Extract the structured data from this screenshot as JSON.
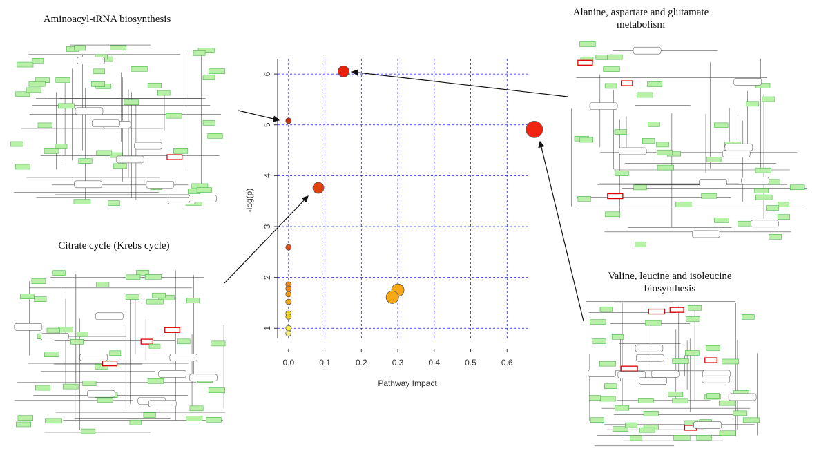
{
  "chart_data": {
    "type": "scatter",
    "x_label": "Pathway Impact",
    "y_label": "-log(p)",
    "x": [
      0.151,
      0.0,
      0.675,
      0.082,
      0.0,
      0.0,
      0.0,
      0.0,
      0.0,
      0.0,
      0.0,
      0.0,
      0.0,
      0.3,
      0.285
    ],
    "values": [
      6.05,
      5.08,
      4.91,
      3.76,
      2.59,
      1.86,
      1.78,
      1.67,
      1.52,
      1.29,
      1.23,
      1.0,
      0.9,
      1.75,
      1.61
    ],
    "sizes": [
      8,
      4,
      12,
      8,
      4,
      4,
      4,
      4,
      4,
      4,
      4,
      4,
      4,
      9,
      9
    ],
    "colors": [
      "#e8220c",
      "#c8300e",
      "#f02410",
      "#e0420e",
      "#e0501a",
      "#f08a1a",
      "#f08a1a",
      "#f09a1a",
      "#f0a81a",
      "#f0d020",
      "#f0d020",
      "#f8ec40",
      "#f8f080",
      "#f8a814",
      "#f8a814"
    ],
    "xlim": [
      -0.03,
      0.7
    ],
    "ylim": [
      0.8,
      6.3
    ],
    "xticks": [
      {
        "value": 0,
        "label": "0.0"
      },
      0.1,
      0.2,
      0.3,
      0.4,
      0.5,
      0.6
    ],
    "yticks": [
      1,
      2,
      3,
      4,
      5,
      6
    ],
    "grid": true,
    "grid_color": "#2222ee"
  },
  "pathway_labels": [
    {
      "lines": [
        "Aminoacyl-tRNA biosynthesis"
      ]
    },
    {
      "lines": [
        "Alanine, aspartate and glutamate",
        "metabolism"
      ]
    },
    {
      "lines": [
        "Citrate cycle (Krebs cycle)"
      ]
    },
    {
      "lines": [
        "Valine, leucine and isoleucine",
        "biosynthesis"
      ]
    }
  ]
}
